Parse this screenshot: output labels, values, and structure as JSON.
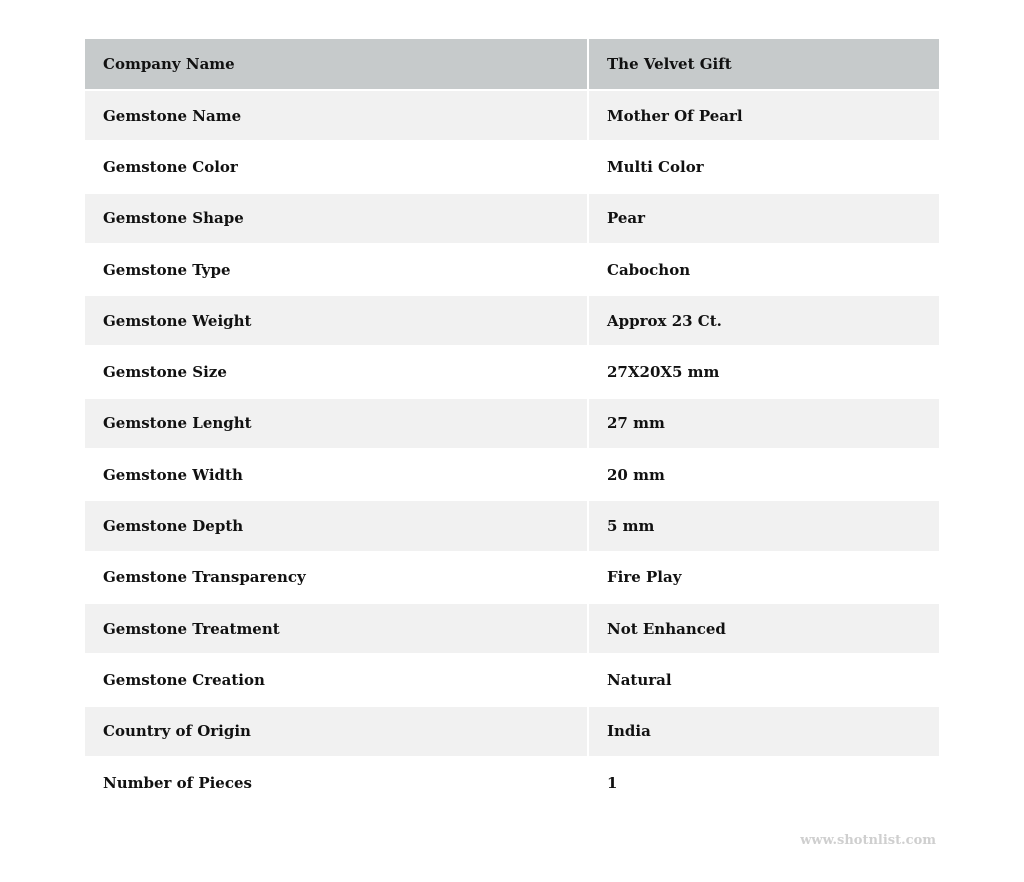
{
  "header": {
    "label": "Company Name",
    "value": "The Velvet Gift"
  },
  "rows": [
    {
      "label": "Gemstone Name",
      "value": "Mother Of Pearl"
    },
    {
      "label": "Gemstone Color",
      "value": "Multi Color"
    },
    {
      "label": "Gemstone Shape",
      "value": "Pear"
    },
    {
      "label": "Gemstone Type",
      "value": "Cabochon"
    },
    {
      "label": "Gemstone Weight",
      "value": "Approx 23 Ct."
    },
    {
      "label": "Gemstone Size",
      "value": "27X20X5 mm"
    },
    {
      "label": "Gemstone Lenght",
      "value": "27 mm"
    },
    {
      "label": "Gemstone Width",
      "value": "20 mm"
    },
    {
      "label": "Gemstone Depth",
      "value": "5 mm"
    },
    {
      "label": "Gemstone Transparency",
      "value": "Fire Play"
    },
    {
      "label": "Gemstone Treatment",
      "value": "Not Enhanced"
    },
    {
      "label": "Gemstone Creation",
      "value": "Natural"
    },
    {
      "label": "Country of Origin",
      "value": "India"
    },
    {
      "label": "Number of Pieces",
      "value": "1"
    }
  ],
  "watermark": "www.shotnlist.com",
  "colors": {
    "header_bg": "#c6cacb",
    "alt_row_bg": "#f1f1f1",
    "watermark": "#cfcfcf"
  }
}
